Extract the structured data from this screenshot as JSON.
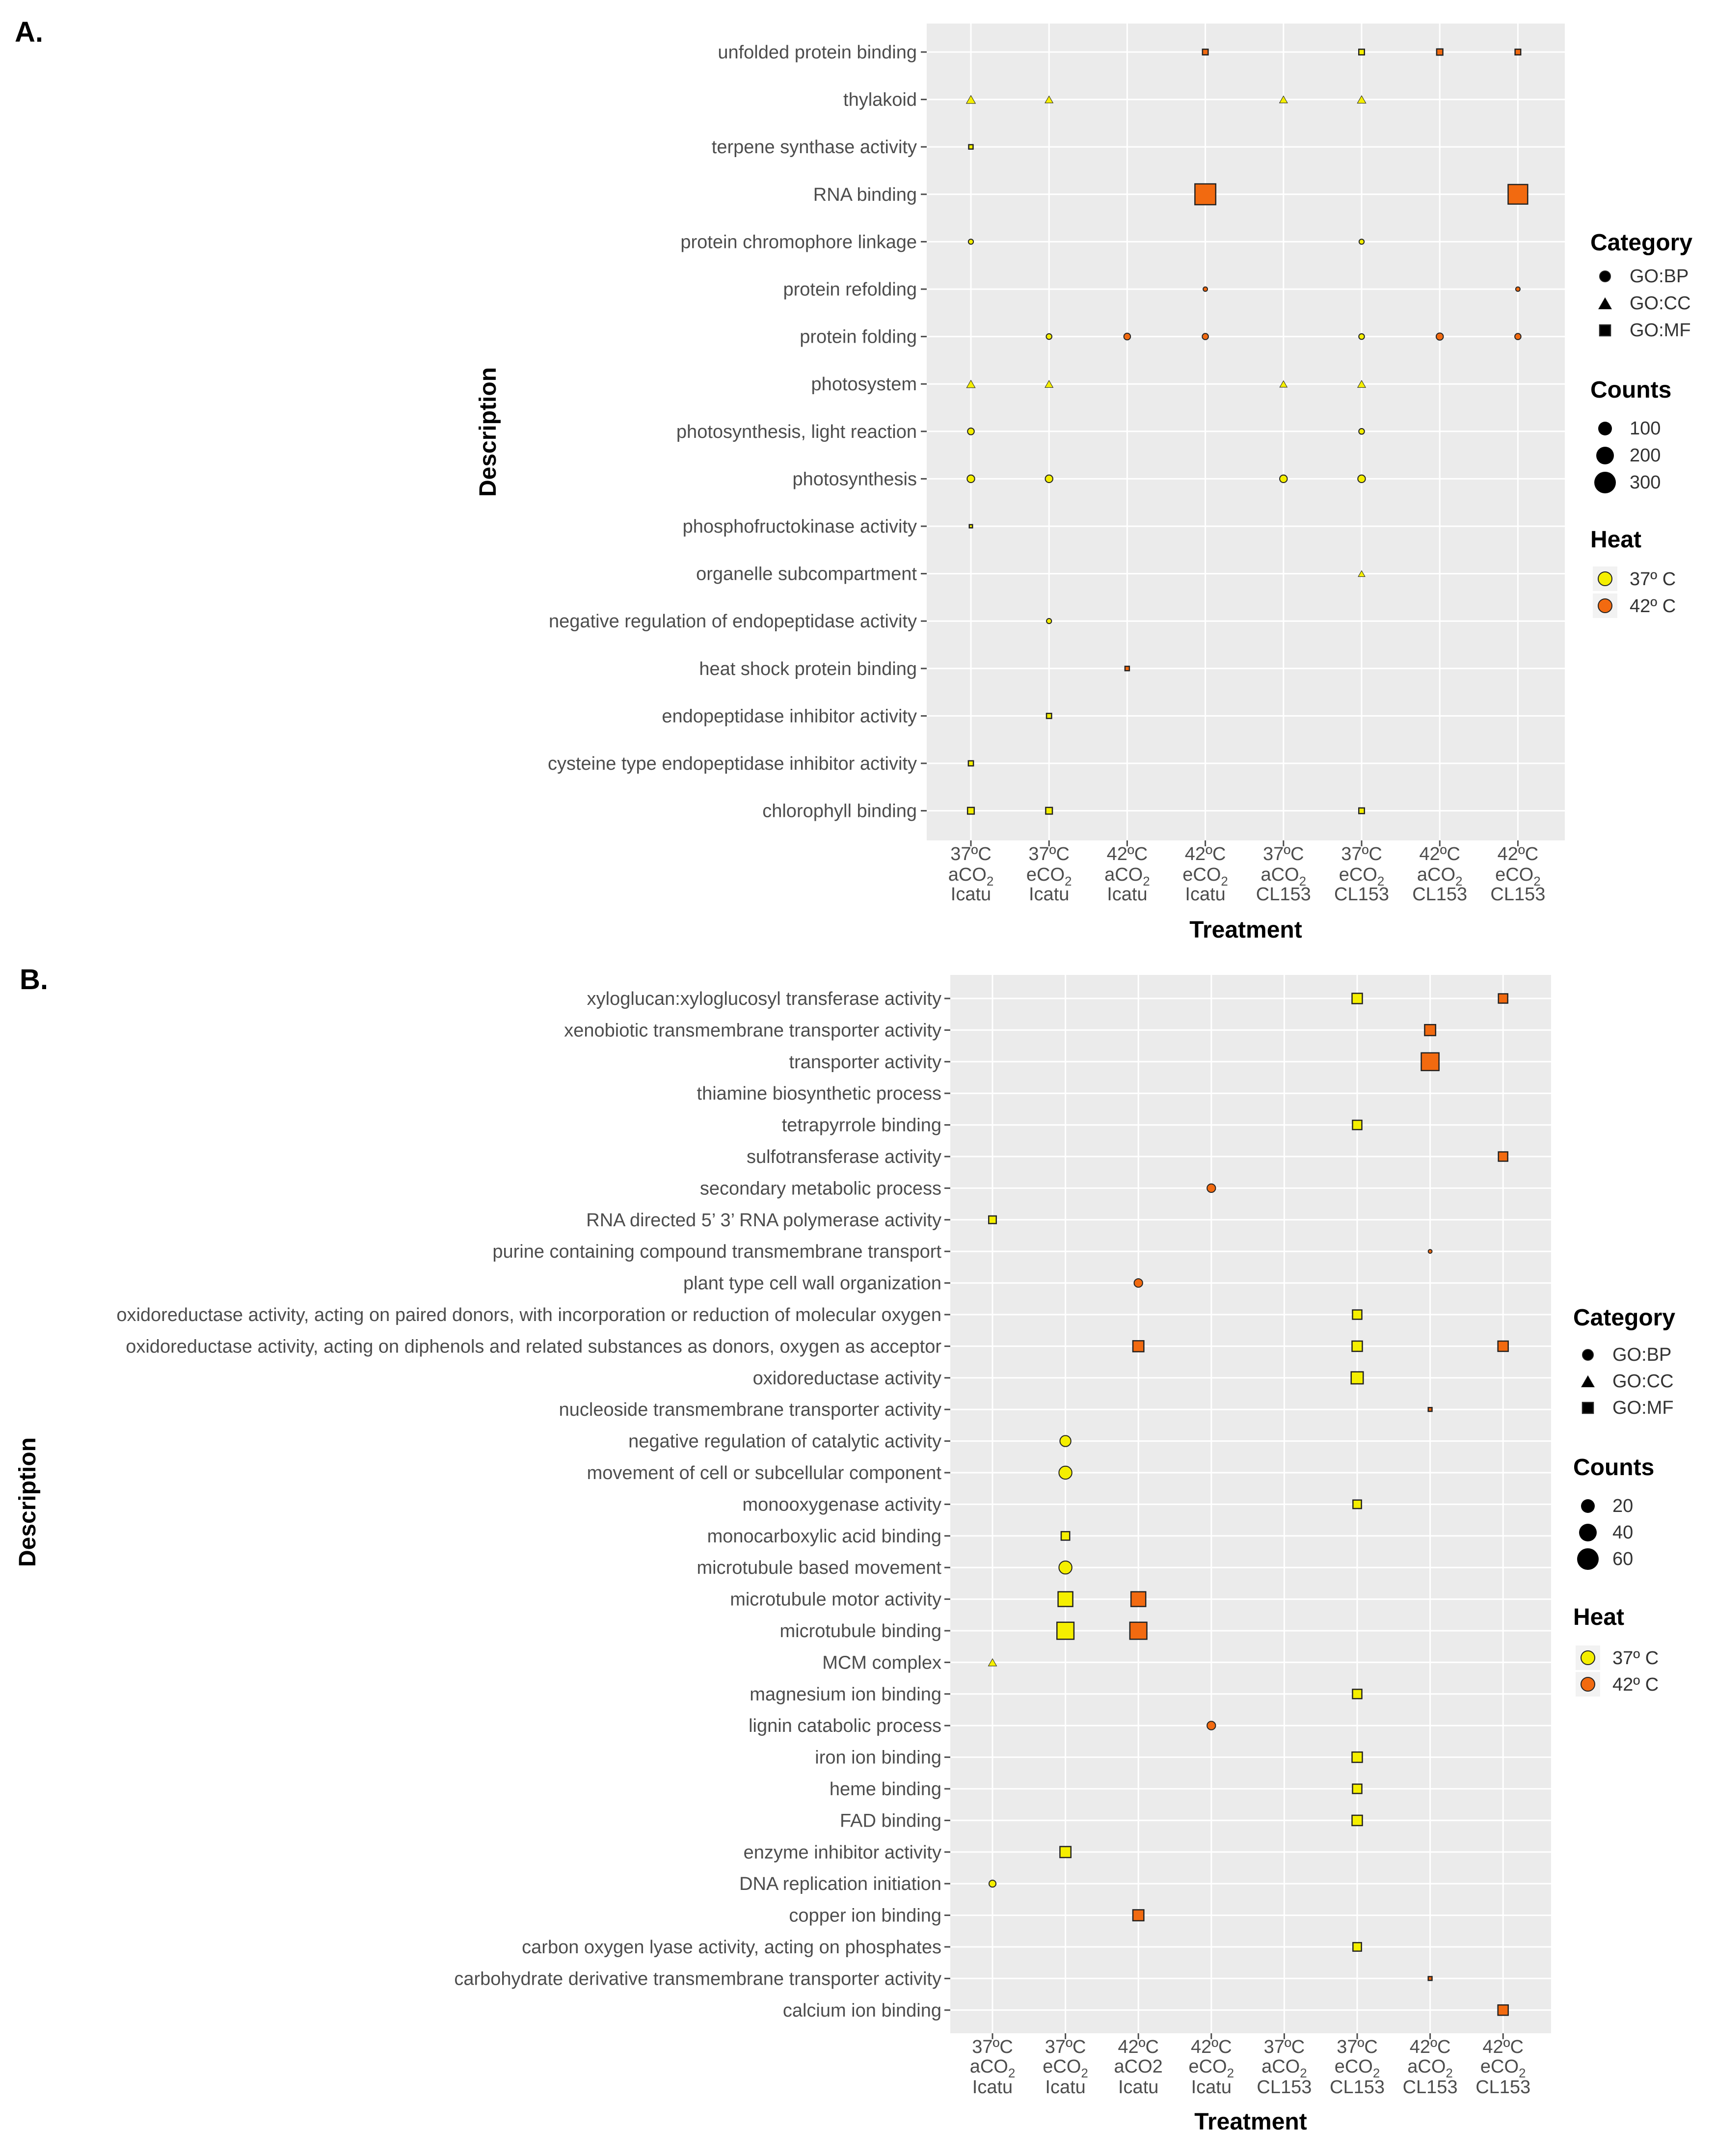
{
  "figure": {
    "domain": "dot-plot figure of GO term enrichment",
    "colors": {
      "panel_bg": "#ebebeb",
      "grid": "#ffffff",
      "heat_37": "#f5ef00",
      "heat_42": "#f26a10",
      "mark_border": "#222222",
      "text": "#333333",
      "title": "#000000"
    }
  },
  "chart_data": [
    {
      "type": "scatter",
      "panel": "A.",
      "xlabel": "Treatment",
      "ylabel": "Description",
      "columns": [
        {
          "l1": "37ºC",
          "l2": "aCO",
          "l3": "Icatu"
        },
        {
          "l1": "37ºC",
          "l2": "eCO",
          "l3": "Icatu"
        },
        {
          "l1": "42ºC",
          "l2": "aCO",
          "l3": "Icatu"
        },
        {
          "l1": "42ºC",
          "l2": "eCO",
          "l3": "Icatu"
        },
        {
          "l1": "37ºC",
          "l2": "aCO",
          "l3": "CL153"
        },
        {
          "l1": "37ºC",
          "l2": "eCO",
          "l3": "CL153"
        },
        {
          "l1": "42ºC",
          "l2": "aCO",
          "l3": "CL153"
        },
        {
          "l1": "42ºC",
          "l2": "eCO",
          "l3": "CL153"
        }
      ],
      "subscript": "2",
      "rows": [
        "unfolded protein binding",
        "thylakoid",
        "terpene synthase activity",
        "RNA binding",
        "protein  chromophore linkage",
        "protein refolding",
        "protein folding",
        "photosystem",
        "photosynthesis, light reaction",
        "photosynthesis",
        "phosphofructokinase activity",
        "organelle subcompartment",
        "negative regulation of endopeptidase activity",
        "heat shock protein binding",
        "endopeptidase inhibitor activity",
        "cysteine  type endopeptidase inhibitor activity",
        "chlorophyll binding"
      ],
      "size_range": [
        10,
        400
      ],
      "points": [
        {
          "row": 0,
          "col": 3,
          "cat": "GO:MF",
          "heat": "42",
          "count": 25
        },
        {
          "row": 0,
          "col": 5,
          "cat": "GO:MF",
          "heat": "37",
          "count": 25
        },
        {
          "row": 0,
          "col": 6,
          "cat": "GO:MF",
          "heat": "42",
          "count": 30
        },
        {
          "row": 0,
          "col": 7,
          "cat": "GO:MF",
          "heat": "42",
          "count": 25
        },
        {
          "row": 1,
          "col": 0,
          "cat": "GO:CC",
          "heat": "37",
          "count": 45
        },
        {
          "row": 1,
          "col": 1,
          "cat": "GO:CC",
          "heat": "37",
          "count": 35
        },
        {
          "row": 1,
          "col": 4,
          "cat": "GO:CC",
          "heat": "37",
          "count": 35
        },
        {
          "row": 1,
          "col": 5,
          "cat": "GO:CC",
          "heat": "37",
          "count": 40
        },
        {
          "row": 2,
          "col": 0,
          "cat": "GO:MF",
          "heat": "37",
          "count": 15
        },
        {
          "row": 3,
          "col": 3,
          "cat": "GO:MF",
          "heat": "42",
          "count": 340
        },
        {
          "row": 3,
          "col": 7,
          "cat": "GO:MF",
          "heat": "42",
          "count": 300
        },
        {
          "row": 4,
          "col": 0,
          "cat": "GO:BP",
          "heat": "37",
          "count": 20
        },
        {
          "row": 4,
          "col": 5,
          "cat": "GO:BP",
          "heat": "37",
          "count": 20
        },
        {
          "row": 5,
          "col": 3,
          "cat": "GO:BP",
          "heat": "42",
          "count": 15
        },
        {
          "row": 5,
          "col": 7,
          "cat": "GO:BP",
          "heat": "42",
          "count": 15
        },
        {
          "row": 6,
          "col": 1,
          "cat": "GO:BP",
          "heat": "37",
          "count": 25
        },
        {
          "row": 6,
          "col": 2,
          "cat": "GO:BP",
          "heat": "42",
          "count": 35
        },
        {
          "row": 6,
          "col": 3,
          "cat": "GO:BP",
          "heat": "42",
          "count": 30
        },
        {
          "row": 6,
          "col": 5,
          "cat": "GO:BP",
          "heat": "37",
          "count": 25
        },
        {
          "row": 6,
          "col": 6,
          "cat": "GO:BP",
          "heat": "42",
          "count": 40
        },
        {
          "row": 6,
          "col": 7,
          "cat": "GO:BP",
          "heat": "42",
          "count": 30
        },
        {
          "row": 7,
          "col": 0,
          "cat": "GO:CC",
          "heat": "37",
          "count": 40
        },
        {
          "row": 7,
          "col": 1,
          "cat": "GO:CC",
          "heat": "37",
          "count": 35
        },
        {
          "row": 7,
          "col": 4,
          "cat": "GO:CC",
          "heat": "37",
          "count": 30
        },
        {
          "row": 7,
          "col": 5,
          "cat": "GO:CC",
          "heat": "37",
          "count": 35
        },
        {
          "row": 8,
          "col": 0,
          "cat": "GO:BP",
          "heat": "37",
          "count": 35
        },
        {
          "row": 8,
          "col": 5,
          "cat": "GO:BP",
          "heat": "37",
          "count": 25
        },
        {
          "row": 9,
          "col": 0,
          "cat": "GO:BP",
          "heat": "37",
          "count": 45
        },
        {
          "row": 9,
          "col": 1,
          "cat": "GO:BP",
          "heat": "37",
          "count": 45
        },
        {
          "row": 9,
          "col": 4,
          "cat": "GO:BP",
          "heat": "37",
          "count": 45
        },
        {
          "row": 9,
          "col": 5,
          "cat": "GO:BP",
          "heat": "37",
          "count": 45
        },
        {
          "row": 10,
          "col": 0,
          "cat": "GO:MF",
          "heat": "37",
          "count": 8
        },
        {
          "row": 11,
          "col": 5,
          "cat": "GO:CC",
          "heat": "37",
          "count": 25
        },
        {
          "row": 12,
          "col": 1,
          "cat": "GO:BP",
          "heat": "37",
          "count": 20
        },
        {
          "row": 13,
          "col": 2,
          "cat": "GO:MF",
          "heat": "42",
          "count": 15
        },
        {
          "row": 14,
          "col": 1,
          "cat": "GO:MF",
          "heat": "37",
          "count": 20
        },
        {
          "row": 15,
          "col": 0,
          "cat": "GO:MF",
          "heat": "37",
          "count": 20
        },
        {
          "row": 16,
          "col": 0,
          "cat": "GO:MF",
          "heat": "37",
          "count": 35
        },
        {
          "row": 16,
          "col": 1,
          "cat": "GO:MF",
          "heat": "37",
          "count": 35
        },
        {
          "row": 16,
          "col": 5,
          "cat": "GO:MF",
          "heat": "37",
          "count": 25
        }
      ],
      "legend": {
        "category_title": "Category",
        "categories": [
          "GO:BP",
          "GO:CC",
          "GO:MF"
        ],
        "counts_title": "Counts",
        "counts": [
          100,
          200,
          300
        ],
        "heat_title": "Heat",
        "heats": [
          "37º C",
          "42º C"
        ]
      }
    },
    {
      "type": "scatter",
      "panel": "B.",
      "xlabel": "Treatment",
      "ylabel": "Description",
      "columns": [
        {
          "l1": "37ºC",
          "l2": "aCO",
          "l3": "Icatu"
        },
        {
          "l1": "37ºC",
          "l2": "eCO",
          "l3": "Icatu"
        },
        {
          "l1": "42ºC",
          "l2": "aCO2",
          "l3": "Icatu"
        },
        {
          "l1": "42ºC",
          "l2": "eCO",
          "l3": "Icatu"
        },
        {
          "l1": "37ºC",
          "l2": "aCO",
          "l3": "CL153"
        },
        {
          "l1": "37ºC",
          "l2": "eCO",
          "l3": "CL153"
        },
        {
          "l1": "42ºC",
          "l2": "aCO",
          "l3": "CL153"
        },
        {
          "l1": "42ºC",
          "l2": "eCO",
          "l3": "CL153"
        }
      ],
      "subscript": "2",
      "rows": [
        "xyloglucan:xyloglucosyl transferase activity",
        "xenobiotic transmembrane transporter activity",
        "transporter activity",
        "thiamine biosynthetic process",
        "tetrapyrrole binding",
        "sulfotransferase activity",
        "secondary metabolic process",
        "RNA  directed 5’  3’ RNA polymerase activity",
        "purine  containing compound transmembrane transport",
        "plant  type cell wall organization",
        "oxidoreductase activity, acting on paired donors, with incorporation or reduction of molecular oxygen",
        "oxidoreductase activity, acting on diphenols and related substances as donors, oxygen as acceptor",
        "oxidoreductase activity",
        "nucleoside transmembrane transporter activity",
        "negative regulation of catalytic activity",
        "movement of cell or subcellular component",
        "monooxygenase activity",
        "monocarboxylic acid binding",
        "microtubule  based movement",
        "microtubule motor activity",
        "microtubule binding",
        "MCM complex",
        "magnesium ion binding",
        "lignin catabolic process",
        "iron ion binding",
        "heme binding",
        "FAD binding",
        "enzyme inhibitor activity",
        "DNA replication initiation",
        "copper ion binding",
        "carbon  oxygen lyase activity, acting on phosphates",
        "carbohydrate derivative transmembrane transporter activity",
        "calcium ion binding"
      ],
      "size_range": [
        1,
        80
      ],
      "points": [
        {
          "row": 0,
          "col": 5,
          "cat": "GO:MF",
          "heat": "37",
          "count": 22
        },
        {
          "row": 0,
          "col": 7,
          "cat": "GO:MF",
          "heat": "42",
          "count": 18
        },
        {
          "row": 1,
          "col": 6,
          "cat": "GO:MF",
          "heat": "42",
          "count": 25
        },
        {
          "row": 2,
          "col": 6,
          "cat": "GO:MF",
          "heat": "42",
          "count": 65
        },
        {
          "row": 4,
          "col": 5,
          "cat": "GO:MF",
          "heat": "37",
          "count": 18
        },
        {
          "row": 5,
          "col": 7,
          "cat": "GO:MF",
          "heat": "42",
          "count": 18
        },
        {
          "row": 6,
          "col": 3,
          "cat": "GO:BP",
          "heat": "42",
          "count": 15
        },
        {
          "row": 7,
          "col": 0,
          "cat": "GO:MF",
          "heat": "37",
          "count": 12
        },
        {
          "row": 8,
          "col": 6,
          "cat": "GO:BP",
          "heat": "42",
          "count": 3
        },
        {
          "row": 9,
          "col": 2,
          "cat": "GO:BP",
          "heat": "42",
          "count": 15
        },
        {
          "row": 10,
          "col": 5,
          "cat": "GO:MF",
          "heat": "37",
          "count": 18
        },
        {
          "row": 11,
          "col": 2,
          "cat": "GO:MF",
          "heat": "42",
          "count": 25
        },
        {
          "row": 11,
          "col": 5,
          "cat": "GO:MF",
          "heat": "37",
          "count": 22
        },
        {
          "row": 11,
          "col": 7,
          "cat": "GO:MF",
          "heat": "42",
          "count": 22
        },
        {
          "row": 12,
          "col": 5,
          "cat": "GO:MF",
          "heat": "37",
          "count": 30
        },
        {
          "row": 13,
          "col": 6,
          "cat": "GO:MF",
          "heat": "42",
          "count": 3
        },
        {
          "row": 14,
          "col": 1,
          "cat": "GO:BP",
          "heat": "37",
          "count": 25
        },
        {
          "row": 15,
          "col": 1,
          "cat": "GO:BP",
          "heat": "37",
          "count": 35
        },
        {
          "row": 16,
          "col": 5,
          "cat": "GO:MF",
          "heat": "37",
          "count": 15
        },
        {
          "row": 17,
          "col": 1,
          "cat": "GO:MF",
          "heat": "37",
          "count": 15
        },
        {
          "row": 18,
          "col": 1,
          "cat": "GO:BP",
          "heat": "37",
          "count": 35
        },
        {
          "row": 19,
          "col": 1,
          "cat": "GO:MF",
          "heat": "37",
          "count": 45
        },
        {
          "row": 19,
          "col": 2,
          "cat": "GO:MF",
          "heat": "42",
          "count": 45
        },
        {
          "row": 20,
          "col": 1,
          "cat": "GO:MF",
          "heat": "37",
          "count": 60
        },
        {
          "row": 20,
          "col": 2,
          "cat": "GO:MF",
          "heat": "42",
          "count": 60
        },
        {
          "row": 21,
          "col": 0,
          "cat": "GO:CC",
          "heat": "37",
          "count": 10
        },
        {
          "row": 22,
          "col": 5,
          "cat": "GO:MF",
          "heat": "37",
          "count": 18
        },
        {
          "row": 23,
          "col": 3,
          "cat": "GO:BP",
          "heat": "42",
          "count": 15
        },
        {
          "row": 24,
          "col": 5,
          "cat": "GO:MF",
          "heat": "37",
          "count": 22
        },
        {
          "row": 25,
          "col": 5,
          "cat": "GO:MF",
          "heat": "37",
          "count": 18
        },
        {
          "row": 26,
          "col": 5,
          "cat": "GO:MF",
          "heat": "37",
          "count": 22
        },
        {
          "row": 27,
          "col": 1,
          "cat": "GO:MF",
          "heat": "37",
          "count": 25
        },
        {
          "row": 28,
          "col": 0,
          "cat": "GO:BP",
          "heat": "37",
          "count": 10
        },
        {
          "row": 29,
          "col": 2,
          "cat": "GO:MF",
          "heat": "42",
          "count": 25
        },
        {
          "row": 30,
          "col": 5,
          "cat": "GO:MF",
          "heat": "37",
          "count": 15
        },
        {
          "row": 31,
          "col": 6,
          "cat": "GO:MF",
          "heat": "42",
          "count": 3
        },
        {
          "row": 32,
          "col": 7,
          "cat": "GO:MF",
          "heat": "42",
          "count": 22
        }
      ],
      "legend": {
        "category_title": "Category",
        "categories": [
          "GO:BP",
          "GO:CC",
          "GO:MF"
        ],
        "counts_title": "Counts",
        "counts": [
          20,
          40,
          60
        ],
        "heat_title": "Heat",
        "heats": [
          "37º C",
          "42º C"
        ]
      }
    }
  ]
}
